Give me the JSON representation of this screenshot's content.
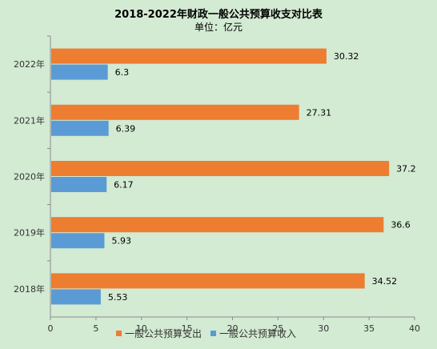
{
  "chart_data": {
    "type": "bar",
    "orientation": "horizontal",
    "title": "2018-2022年财政一般公共预算收支对比表",
    "subtitle": "单位：亿元",
    "categories": [
      "2022年",
      "2021年",
      "2020年",
      "2019年",
      "2018年"
    ],
    "series": [
      {
        "name": "一般公共预算支出",
        "color": "#ed7d31",
        "values": [
          30.32,
          27.31,
          37.2,
          36.6,
          34.52
        ]
      },
      {
        "name": "一般公共预算收入",
        "color": "#5b9bd5",
        "values": [
          6.3,
          6.39,
          6.17,
          5.93,
          5.53
        ]
      }
    ],
    "xlim": [
      0,
      40
    ],
    "xticks": [
      "0",
      "5",
      "10",
      "15",
      "20",
      "25",
      "30",
      "35",
      "40"
    ],
    "grid": false,
    "legend_position": "bottom"
  }
}
